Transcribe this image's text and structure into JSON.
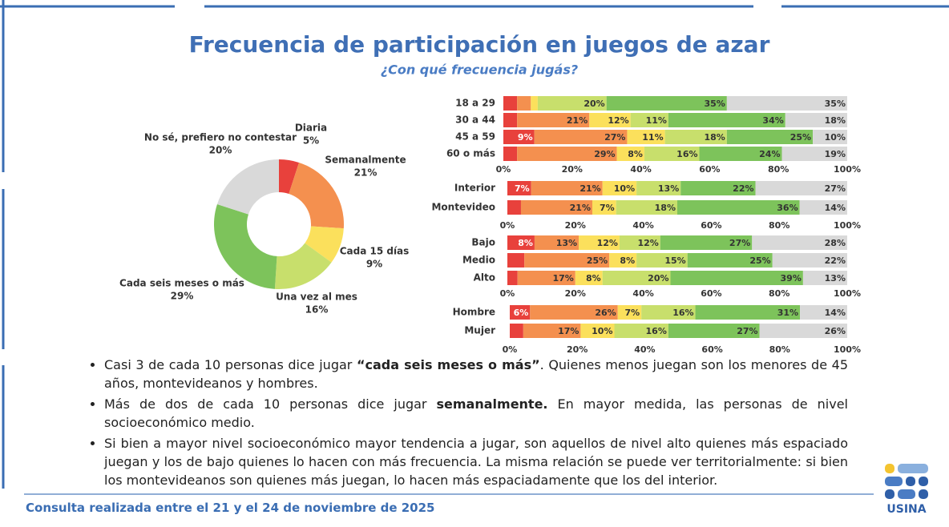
{
  "title": "Frecuencia de participación en juegos de azar",
  "subtitle": "¿Con qué frecuencia jugás?",
  "chart_data": [
    {
      "type": "pie",
      "donut": true,
      "categories": [
        "Diaria",
        "Semanalmente",
        "Cada 15 días",
        "Una vez al mes",
        "Cada seis meses o más",
        "No sé, prefiero no contestar"
      ],
      "values": [
        5,
        21,
        9,
        16,
        29,
        20
      ],
      "value_labels": [
        "5%",
        "21%",
        "9%",
        "16%",
        "29%",
        "20%"
      ],
      "colors": [
        "#e8413c",
        "#f4904f",
        "#fbe05c",
        "#c8df6c",
        "#7dc35b",
        "#d9d9d9"
      ]
    },
    {
      "type": "bar",
      "orientation": "horizontal",
      "stacked": true,
      "categories": [
        "18 a 29",
        "30 a 44",
        "45 a 59",
        "60 o más"
      ],
      "xlim": [
        0,
        100
      ],
      "xticks": [
        {
          "value": 0,
          "label": "0%"
        },
        {
          "value": 20,
          "label": "20%"
        },
        {
          "value": 40,
          "label": "40%"
        },
        {
          "value": 60,
          "label": "60%"
        },
        {
          "value": 80,
          "label": "80%"
        },
        {
          "value": 100,
          "label": "100%"
        }
      ],
      "series": [
        {
          "color": "#e8413c",
          "values": [
            4,
            4,
            9,
            4
          ],
          "value_labels": [
            null,
            null,
            "9%",
            null
          ]
        },
        {
          "color": "#f4904f",
          "values": [
            4,
            21,
            27,
            29
          ],
          "value_labels": [
            null,
            "21%",
            "27%",
            "29%"
          ]
        },
        {
          "color": "#fbe05c",
          "values": [
            2,
            12,
            11,
            8
          ],
          "value_labels": [
            null,
            "12%",
            "11%",
            "8%"
          ]
        },
        {
          "color": "#c8df6c",
          "values": [
            20,
            11,
            18,
            16
          ],
          "value_labels": [
            "20%",
            "11%",
            "18%",
            "16%"
          ]
        },
        {
          "color": "#7dc35b",
          "values": [
            35,
            34,
            25,
            24
          ],
          "value_labels": [
            "35%",
            "34%",
            "25%",
            "24%"
          ]
        },
        {
          "color": "#d9d9d9",
          "values": [
            35,
            18,
            10,
            19
          ],
          "value_labels": [
            "35%",
            "18%",
            "10%",
            "19%"
          ]
        }
      ]
    },
    {
      "type": "bar",
      "orientation": "horizontal",
      "stacked": true,
      "categories": [
        "Interior",
        "Montevideo"
      ],
      "xlim": [
        0,
        100
      ],
      "xticks": [
        {
          "value": 0,
          "label": "0%"
        },
        {
          "value": 20,
          "label": "20%"
        },
        {
          "value": 40,
          "label": "40%"
        },
        {
          "value": 60,
          "label": "60%"
        },
        {
          "value": 80,
          "label": "80%"
        },
        {
          "value": 100,
          "label": "100%"
        }
      ],
      "series": [
        {
          "color": "#e8413c",
          "values": [
            7,
            4
          ],
          "value_labels": [
            "7%",
            null
          ]
        },
        {
          "color": "#f4904f",
          "values": [
            21,
            21
          ],
          "value_labels": [
            "21%",
            "21%"
          ]
        },
        {
          "color": "#fbe05c",
          "values": [
            10,
            7
          ],
          "value_labels": [
            "10%",
            "7%"
          ]
        },
        {
          "color": "#c8df6c",
          "values": [
            13,
            18
          ],
          "value_labels": [
            "13%",
            "18%"
          ]
        },
        {
          "color": "#7dc35b",
          "values": [
            22,
            36
          ],
          "value_labels": [
            "22%",
            "36%"
          ]
        },
        {
          "color": "#d9d9d9",
          "values": [
            27,
            14
          ],
          "value_labels": [
            "27%",
            "14%"
          ]
        }
      ]
    },
    {
      "type": "bar",
      "orientation": "horizontal",
      "stacked": true,
      "categories": [
        "Bajo",
        "Medio",
        "Alto"
      ],
      "xlim": [
        0,
        100
      ],
      "xticks": [
        {
          "value": 0,
          "label": "0%"
        },
        {
          "value": 20,
          "label": "20%"
        },
        {
          "value": 40,
          "label": "40%"
        },
        {
          "value": 60,
          "label": "60%"
        },
        {
          "value": 80,
          "label": "80%"
        },
        {
          "value": 100,
          "label": "100%"
        }
      ],
      "series": [
        {
          "color": "#e8413c",
          "values": [
            8,
            5,
            3
          ],
          "value_labels": [
            "8%",
            null,
            null
          ]
        },
        {
          "color": "#f4904f",
          "values": [
            13,
            25,
            17
          ],
          "value_labels": [
            "13%",
            "25%",
            "17%"
          ]
        },
        {
          "color": "#fbe05c",
          "values": [
            12,
            8,
            8
          ],
          "value_labels": [
            "12%",
            "8%",
            "8%"
          ]
        },
        {
          "color": "#c8df6c",
          "values": [
            12,
            15,
            20
          ],
          "value_labels": [
            "12%",
            "15%",
            "20%"
          ]
        },
        {
          "color": "#7dc35b",
          "values": [
            27,
            25,
            39
          ],
          "value_labels": [
            "27%",
            "25%",
            "39%"
          ]
        },
        {
          "color": "#d9d9d9",
          "values": [
            28,
            22,
            13
          ],
          "value_labels": [
            "28%",
            "22%",
            "13%"
          ]
        }
      ]
    },
    {
      "type": "bar",
      "orientation": "horizontal",
      "stacked": true,
      "categories": [
        "Hombre",
        "Mujer"
      ],
      "xlim": [
        0,
        100
      ],
      "xticks": [
        {
          "value": 0,
          "label": "0%"
        },
        {
          "value": 20,
          "label": "20%"
        },
        {
          "value": 40,
          "label": "40%"
        },
        {
          "value": 60,
          "label": "60%"
        },
        {
          "value": 80,
          "label": "80%"
        },
        {
          "value": 100,
          "label": "100%"
        }
      ],
      "series": [
        {
          "color": "#e8413c",
          "values": [
            6,
            4
          ],
          "value_labels": [
            "6%",
            null
          ]
        },
        {
          "color": "#f4904f",
          "values": [
            26,
            17
          ],
          "value_labels": [
            "26%",
            "17%"
          ]
        },
        {
          "color": "#fbe05c",
          "values": [
            7,
            10
          ],
          "value_labels": [
            "7%",
            "10%"
          ]
        },
        {
          "color": "#c8df6c",
          "values": [
            16,
            16
          ],
          "value_labels": [
            "16%",
            "16%"
          ]
        },
        {
          "color": "#7dc35b",
          "values": [
            31,
            27
          ],
          "value_labels": [
            "31%",
            "27%"
          ]
        },
        {
          "color": "#d9d9d9",
          "values": [
            14,
            26
          ],
          "value_labels": [
            "14%",
            "26%"
          ]
        }
      ]
    }
  ],
  "bullets": [
    [
      "Casi 3 de cada 10 personas dice jugar ",
      "“cada seis meses o más”",
      ". Quienes menos juegan son los menores de 45 años, montevideanos y hombres."
    ],
    [
      "Más de dos de cada 10 personas dice jugar ",
      "semanalmente.",
      " En mayor medida, las personas de nivel socioeconómico medio."
    ],
    [
      "Si bien a mayor nivel socioeconómico mayor tendencia a jugar, son aquellos de nivel alto quienes más espaciado juegan y los de bajo quienes lo hacen con más frecuencia. La misma relación se puede ver territorialmente: si bien los montevideanos son quienes más juegan, lo hacen más espaciadamente que los del interior."
    ]
  ],
  "footer": "Consulta realizada entre el 21 y el 24 de noviembre de 2025",
  "logo": "USINA"
}
